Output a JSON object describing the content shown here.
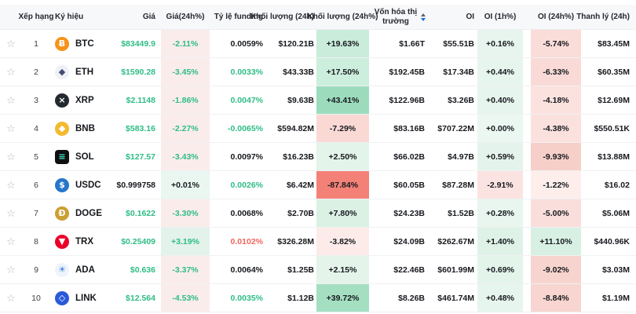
{
  "theme": {
    "green": "#2ebd85",
    "red": "#f5655c",
    "dark": "#17191e",
    "blue": "#1a6bdc",
    "header_bg": "#f7f8f9",
    "divider": "#f0f1f3",
    "star_glyph": "☆"
  },
  "table": {
    "columns": [
      {
        "id": "fav",
        "label": "",
        "align": "center",
        "pad": "",
        "name": "col-header-favorite",
        "sortable": false,
        "wrap": false
      },
      {
        "id": "rank",
        "label": "Xếp hạng",
        "align": "center",
        "pad": "",
        "name": "col-header-rank",
        "sortable": false,
        "wrap": false
      },
      {
        "id": "symbol",
        "label": "Ký hiệu",
        "align": "left",
        "pad": "p-sym",
        "name": "col-header-symbol",
        "sortable": false,
        "wrap": false
      },
      {
        "id": "price",
        "label": "Giá",
        "align": "right",
        "pad": "p-price",
        "name": "col-header-price",
        "sortable": false,
        "wrap": false
      },
      {
        "id": "price_chg",
        "label": "Giá(24h%)",
        "align": "center",
        "pad": "",
        "name": "col-header-price-24h",
        "sortable": false,
        "wrap": false
      },
      {
        "id": "funding",
        "label": "Tỷ lệ funding",
        "align": "right",
        "pad": "p-fund",
        "name": "col-header-funding-rate",
        "sortable": false,
        "wrap": false
      },
      {
        "id": "vol",
        "label": "Khối lượng (24h)",
        "align": "right",
        "pad": "p-vol",
        "name": "col-header-volume-24h",
        "sortable": false,
        "wrap": false
      },
      {
        "id": "vol_chg",
        "label": "Khối lượng (24h%)",
        "align": "center",
        "pad": "",
        "name": "col-header-volume-24h-pct",
        "sortable": false,
        "wrap": false
      },
      {
        "id": "mcap",
        "label": "Vốn hóa thị trường",
        "align": "center",
        "pad": "",
        "name": "col-header-market-cap",
        "sortable": true,
        "wrap": true
      },
      {
        "id": "oi",
        "label": "OI",
        "align": "right",
        "pad": "p-oi",
        "name": "col-header-oi",
        "sortable": false,
        "wrap": false
      },
      {
        "id": "oi_1h",
        "label": "OI (1h%)",
        "align": "center",
        "pad": "",
        "name": "col-header-oi-1h",
        "sortable": false,
        "wrap": false
      },
      {
        "id": "spacer",
        "label": "",
        "align": "center",
        "pad": "",
        "name": "col-header-spacer",
        "sortable": false,
        "wrap": false
      },
      {
        "id": "oi_24h",
        "label": "OI (24h%)",
        "align": "center",
        "pad": "",
        "name": "col-header-oi-24h",
        "sortable": false,
        "wrap": false
      },
      {
        "id": "liq",
        "label": "Thanh lý (24h)",
        "align": "right",
        "pad": "p-liq",
        "name": "col-header-liquidation-24h",
        "sortable": false,
        "wrap": false
      }
    ],
    "rows": [
      {
        "rank": "1",
        "symbol": "BTC",
        "icon": {
          "glyph": "Ƀ",
          "bg": "#f7931a",
          "fg": "#ffffff",
          "shape": "circle"
        },
        "price": {
          "text": "$83449.9",
          "cls": "green"
        },
        "price_chg": {
          "text": "-2.11%",
          "cls": "green",
          "bg": "#fbecec"
        },
        "funding": {
          "text": "0.0059%",
          "cls": "dark"
        },
        "vol": "$120.21B",
        "vol_chg": {
          "text": "+19.63%",
          "bg": "#c9ecdb"
        },
        "mcap": "$1.66T",
        "oi": "$55.51B",
        "oi_1h": {
          "text": "+0.16%",
          "bg": "#e7f5ee"
        },
        "oi_24h": {
          "text": "-5.74%",
          "bg": "#fadcd9"
        },
        "liq": "$83.45M"
      },
      {
        "rank": "2",
        "symbol": "ETH",
        "icon": {
          "glyph": "◆",
          "bg": "#edf0f4",
          "fg": "#454a75",
          "shape": "circle"
        },
        "price": {
          "text": "$1590.28",
          "cls": "green"
        },
        "price_chg": {
          "text": "-3.45%",
          "cls": "green",
          "bg": "#fbecec"
        },
        "funding": {
          "text": "0.0033%",
          "cls": "green"
        },
        "vol": "$43.33B",
        "vol_chg": {
          "text": "+17.50%",
          "bg": "#cceedd"
        },
        "mcap": "$192.45B",
        "oi": "$17.34B",
        "oi_1h": {
          "text": "+0.44%",
          "bg": "#e6f5ed"
        },
        "oi_24h": {
          "text": "-6.33%",
          "bg": "#f9dad7"
        },
        "liq": "$60.35M"
      },
      {
        "rank": "3",
        "symbol": "XRP",
        "icon": {
          "glyph": "×",
          "bg": "#23292f",
          "fg": "#ffffff",
          "shape": "circle"
        },
        "price": {
          "text": "$2.1148",
          "cls": "green"
        },
        "price_chg": {
          "text": "-1.86%",
          "cls": "green",
          "bg": "#fbecec"
        },
        "funding": {
          "text": "0.0047%",
          "cls": "green"
        },
        "vol": "$9.63B",
        "vol_chg": {
          "text": "+43.41%",
          "bg": "#9cdcbd"
        },
        "mcap": "$122.96B",
        "oi": "$3.26B",
        "oi_1h": {
          "text": "+0.40%",
          "bg": "#e6f5ed"
        },
        "oi_24h": {
          "text": "-4.18%",
          "bg": "#fbe2df"
        },
        "liq": "$12.69M"
      },
      {
        "rank": "4",
        "symbol": "BNB",
        "icon": {
          "glyph": "◆",
          "bg": "#f3ba2f",
          "fg": "#ffffff",
          "shape": "circle"
        },
        "price": {
          "text": "$583.16",
          "cls": "green"
        },
        "price_chg": {
          "text": "-2.27%",
          "cls": "green",
          "bg": "#fbecec"
        },
        "funding": {
          "text": "-0.0065%",
          "cls": "green"
        },
        "vol": "$594.82M",
        "vol_chg": {
          "text": "-7.29%",
          "bg": "#fad9d5"
        },
        "mcap": "$83.16B",
        "oi": "$707.22M",
        "oi_1h": {
          "text": "+0.00%",
          "bg": "#ebf7f1"
        },
        "oi_24h": {
          "text": "-4.38%",
          "bg": "#fbe1de"
        },
        "liq": "$550.51K"
      },
      {
        "rank": "5",
        "symbol": "SOL",
        "icon": {
          "glyph": "≡",
          "bg": "#101010",
          "fg": "#3ee6c4",
          "shape": "square"
        },
        "price": {
          "text": "$127.57",
          "cls": "green"
        },
        "price_chg": {
          "text": "-3.43%",
          "cls": "green",
          "bg": "#fbecec"
        },
        "funding": {
          "text": "0.0097%",
          "cls": "dark"
        },
        "vol": "$16.23B",
        "vol_chg": {
          "text": "+2.50%",
          "bg": "#e3f4ea"
        },
        "mcap": "$66.02B",
        "oi": "$4.97B",
        "oi_1h": {
          "text": "+0.59%",
          "bg": "#e4f4ec"
        },
        "oi_24h": {
          "text": "-9.93%",
          "bg": "#f7cfc9"
        },
        "liq": "$13.88M"
      },
      {
        "rank": "6",
        "symbol": "USDC",
        "icon": {
          "glyph": "$",
          "bg": "#2775ca",
          "fg": "#ffffff",
          "shape": "circle"
        },
        "price": {
          "text": "$0.999758",
          "cls": "dark"
        },
        "price_chg": {
          "text": "+0.01%",
          "cls": "dark",
          "bg": "#eaf6f0"
        },
        "funding": {
          "text": "0.0026%",
          "cls": "green"
        },
        "vol": "$6.42M",
        "vol_chg": {
          "text": "-87.84%",
          "bg": "#f38177"
        },
        "mcap": "$60.05B",
        "oi": "$87.28M",
        "oi_1h": {
          "text": "-2.91%",
          "bg": "#fbe3e1"
        },
        "oi_24h": {
          "text": "-1.22%",
          "bg": "#fdeeec"
        },
        "liq": "$16.02"
      },
      {
        "rank": "7",
        "symbol": "DOGE",
        "icon": {
          "glyph": "Ð",
          "bg": "#cb9f32",
          "fg": "#ffffff",
          "shape": "circle"
        },
        "price": {
          "text": "$0.1622",
          "cls": "green"
        },
        "price_chg": {
          "text": "-3.30%",
          "cls": "green",
          "bg": "#fbecec"
        },
        "funding": {
          "text": "0.0068%",
          "cls": "dark"
        },
        "vol": "$2.70B",
        "vol_chg": {
          "text": "+7.80%",
          "bg": "#daf1e4"
        },
        "mcap": "$24.23B",
        "oi": "$1.52B",
        "oi_1h": {
          "text": "+0.28%",
          "bg": "#e8f6ef"
        },
        "oi_24h": {
          "text": "-5.00%",
          "bg": "#fadedb"
        },
        "liq": "$5.06M"
      },
      {
        "rank": "8",
        "symbol": "TRX",
        "icon": {
          "glyph": "▼",
          "bg": "#eb0029",
          "fg": "#ffffff",
          "shape": "circle"
        },
        "price": {
          "text": "$0.25409",
          "cls": "green"
        },
        "price_chg": {
          "text": "+3.19%",
          "cls": "green",
          "bg": "#e3f2ea"
        },
        "funding": {
          "text": "0.0102%",
          "cls": "red"
        },
        "vol": "$326.28M",
        "vol_chg": {
          "text": "-3.82%",
          "bg": "#fcebe9"
        },
        "mcap": "$24.09B",
        "oi": "$262.67M",
        "oi_1h": {
          "text": "+1.40%",
          "bg": "#def2e8"
        },
        "oi_24h": {
          "text": "+11.10%",
          "bg": "#d8f0e4"
        },
        "liq": "$440.96K"
      },
      {
        "rank": "9",
        "symbol": "ADA",
        "icon": {
          "glyph": "☀",
          "bg": "#eef4fb",
          "fg": "#3d7edb",
          "shape": "circle"
        },
        "price": {
          "text": "$0.636",
          "cls": "green"
        },
        "price_chg": {
          "text": "-3.37%",
          "cls": "green",
          "bg": "#fbecec"
        },
        "funding": {
          "text": "0.0064%",
          "cls": "dark"
        },
        "vol": "$1.25B",
        "vol_chg": {
          "text": "+2.15%",
          "bg": "#e4f4eb"
        },
        "mcap": "$22.46B",
        "oi": "$601.99M",
        "oi_1h": {
          "text": "+0.69%",
          "bg": "#e3f4eb"
        },
        "oi_24h": {
          "text": "-9.02%",
          "bg": "#f8d4cf"
        },
        "liq": "$3.03M"
      },
      {
        "rank": "10",
        "symbol": "LINK",
        "icon": {
          "glyph": "◇",
          "bg": "#2a5ada",
          "fg": "#ffffff",
          "shape": "circle"
        },
        "price": {
          "text": "$12.564",
          "cls": "green"
        },
        "price_chg": {
          "text": "-4.53%",
          "cls": "green",
          "bg": "#fbecec"
        },
        "funding": {
          "text": "0.0035%",
          "cls": "green"
        },
        "vol": "$1.12B",
        "vol_chg": {
          "text": "+39.72%",
          "bg": "#a4dfc2"
        },
        "mcap": "$8.26B",
        "oi": "$461.74M",
        "oi_1h": {
          "text": "+0.48%",
          "bg": "#e6f5ed"
        },
        "oi_24h": {
          "text": "-8.84%",
          "bg": "#f8d5d0"
        },
        "liq": "$1.19M"
      }
    ]
  }
}
